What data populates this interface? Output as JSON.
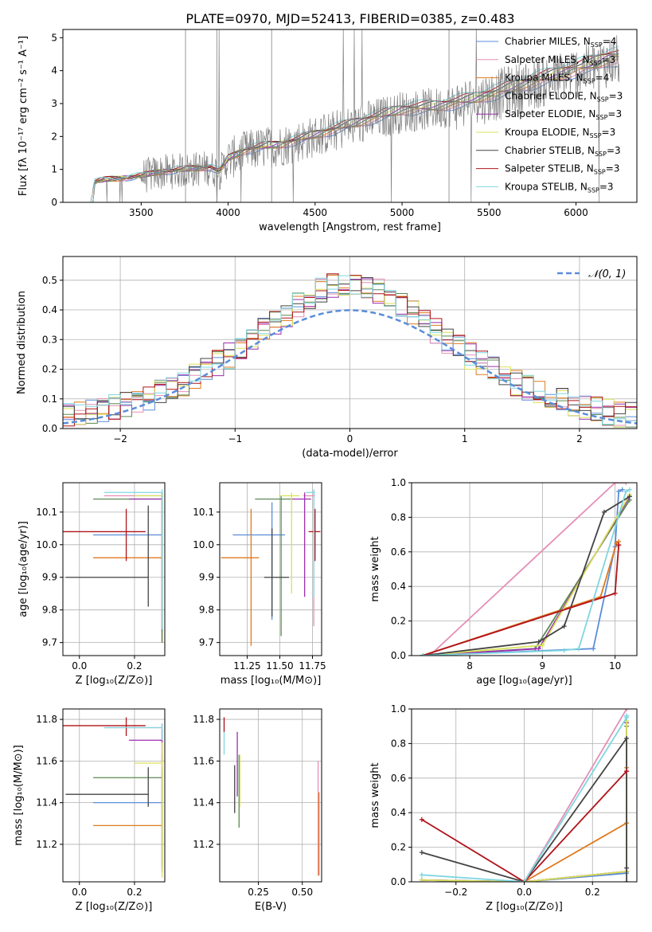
{
  "figure": {
    "title": "PLATE=0970, MJD=52413, FIBERID=0385, z=0.483"
  },
  "series_styles": [
    {
      "name": "Chabrier MILES",
      "nssp": "4",
      "color": "#5b8dd9"
    },
    {
      "name": "Salpeter MILES",
      "nssp": "3",
      "color": "#e58fb6"
    },
    {
      "name": "Kroupa MILES",
      "nssp": "4",
      "color": "#e07a1f"
    },
    {
      "name": "Chabrier ELODIE",
      "nssp": "3",
      "color": "#5b8a52"
    },
    {
      "name": "Salpeter ELODIE",
      "nssp": "3",
      "color": "#9b2fae"
    },
    {
      "name": "Kroupa ELODIE",
      "nssp": "3",
      "color": "#d9e15a"
    },
    {
      "name": "Chabrier STELIB",
      "nssp": "3",
      "color": "#444444"
    },
    {
      "name": "Salpeter STELIB",
      "nssp": "3",
      "color": "#b0141a"
    },
    {
      "name": "Kroupa STELIB",
      "nssp": "3",
      "color": "#7fd6e0"
    }
  ],
  "chart_data": [
    {
      "id": "spectrum",
      "type": "line",
      "title": "PLATE=0970, MJD=52413, FIBERID=0385, z=0.483",
      "xlabel": "wavelength [Angstrom, rest frame]",
      "ylabel": "Flux [fλ 10⁻¹⁷ erg cm⁻² s⁻¹ A⁻¹]",
      "xlim": [
        3050,
        6350
      ],
      "ylim": [
        0,
        5.25
      ],
      "xticks": [
        3500,
        4000,
        4500,
        5000,
        5500,
        6000
      ],
      "yticks": [
        0,
        1,
        2,
        3,
        4,
        5
      ],
      "data_color": "#808080",
      "data_trend": [
        [
          3210,
          0
        ],
        [
          3230,
          0.6
        ],
        [
          3300,
          0.68
        ],
        [
          3400,
          0.72
        ],
        [
          3500,
          0.78
        ],
        [
          3600,
          0.9
        ],
        [
          3700,
          0.95
        ],
        [
          3800,
          1.0
        ],
        [
          3900,
          1.05
        ],
        [
          3950,
          0.9
        ],
        [
          4000,
          1.3
        ],
        [
          4100,
          1.55
        ],
        [
          4200,
          1.65
        ],
        [
          4300,
          1.72
        ],
        [
          4400,
          1.85
        ],
        [
          4500,
          2.0
        ],
        [
          4600,
          2.15
        ],
        [
          4700,
          2.3
        ],
        [
          4800,
          2.45
        ],
        [
          4900,
          2.6
        ],
        [
          5000,
          2.75
        ],
        [
          5100,
          2.8
        ],
        [
          5200,
          2.85
        ],
        [
          5300,
          2.95
        ],
        [
          5400,
          3.05
        ],
        [
          5500,
          3.2
        ],
        [
          5600,
          3.35
        ],
        [
          5700,
          3.5
        ],
        [
          5800,
          3.65
        ],
        [
          5900,
          3.8
        ],
        [
          6000,
          3.95
        ],
        [
          6100,
          4.1
        ],
        [
          6200,
          4.3
        ]
      ],
      "legend_position": "top-right",
      "grid": false
    },
    {
      "id": "residuals",
      "type": "histogram",
      "xlabel": "(data-model)/error",
      "ylabel": "Normed distribution",
      "xlim": [
        -2.5,
        2.5
      ],
      "ylim": [
        0,
        0.58
      ],
      "xticks": [
        -2,
        -1,
        0,
        1,
        2
      ],
      "yticks": [
        0.0,
        0.1,
        0.2,
        0.3,
        0.4,
        0.5
      ],
      "bin_width": 0.1,
      "gaussian_label": "𝒩(0, 1)",
      "gaussian_color": "#5b8dd9",
      "legend_position": "top-right",
      "grid": true
    },
    {
      "id": "age-vs-Z",
      "type": "errorbar",
      "xlabel": "Z [log₁₀(Z/Z⊙)]",
      "ylabel": "age  [log₁₀(age/yr)]",
      "xlim": [
        -0.06,
        0.31
      ],
      "ylim": [
        9.66,
        10.19
      ],
      "xticks": [
        0.0,
        0.2
      ],
      "yticks": [
        9.7,
        9.8,
        9.9,
        10.0,
        10.1
      ],
      "points": [
        {
          "x": 0.3,
          "y": 10.03,
          "xerr": [
            0.25,
            0.0
          ],
          "yerr": [
            0.3,
            0.1
          ],
          "color": "#5b8dd9"
        },
        {
          "x": 0.3,
          "y": 10.15,
          "xerr": [
            0.21,
            0.0
          ],
          "yerr": [
            0.45,
            0.01
          ],
          "color": "#e58fb6"
        },
        {
          "x": 0.3,
          "y": 9.96,
          "xerr": [
            0.25,
            0.0
          ],
          "yerr": [
            0.26,
            0.2
          ],
          "color": "#e07a1f"
        },
        {
          "x": 0.3,
          "y": 10.14,
          "xerr": [
            0.25,
            0.0
          ],
          "yerr": [
            0.44,
            0.01
          ],
          "color": "#5b8a52"
        },
        {
          "x": 0.3,
          "y": 10.14,
          "xerr": [
            0.12,
            0.0
          ],
          "yerr": [
            0.4,
            0.02
          ],
          "color": "#9b2fae"
        },
        {
          "x": 0.3,
          "y": 10.15,
          "xerr": [
            0.1,
            0.0
          ],
          "yerr": [
            0.4,
            0.01
          ],
          "color": "#d9e15a"
        },
        {
          "x": 0.25,
          "y": 9.9,
          "xerr": [
            0.3,
            0.0
          ],
          "yerr": [
            0.09,
            0.22
          ],
          "color": "#444444"
        },
        {
          "x": 0.17,
          "y": 10.04,
          "xerr": [
            0.23,
            0.07
          ],
          "yerr": [
            0.09,
            0.07
          ],
          "color": "#b0141a"
        },
        {
          "x": 0.3,
          "y": 10.16,
          "xerr": [
            0.21,
            0.0
          ],
          "yerr": [
            0.42,
            0.01
          ],
          "color": "#7fd6e0"
        }
      ],
      "grid": true
    },
    {
      "id": "age-vs-mass",
      "type": "errorbar",
      "xlabel": "mass [log₁₀(M/M⊙)]",
      "ylabel": "",
      "xlim": [
        11.04,
        11.82
      ],
      "ylim": [
        9.66,
        10.19
      ],
      "xticks": [
        11.25,
        11.5,
        11.75
      ],
      "yticks": [
        9.7,
        9.8,
        9.9,
        10.0,
        10.1
      ],
      "points": [
        {
          "x": 11.44,
          "y": 10.03,
          "xerr": [
            0.3,
            0.1
          ],
          "yerr": [
            0.26,
            0.1
          ],
          "color": "#5b8dd9"
        },
        {
          "x": 11.76,
          "y": 10.15,
          "xerr": [
            0.08,
            0.01
          ],
          "yerr": [
            0.4,
            0.01
          ],
          "color": "#e58fb6"
        },
        {
          "x": 11.28,
          "y": 9.96,
          "xerr": [
            0.23,
            0.06
          ],
          "yerr": [
            0.27,
            0.15
          ],
          "color": "#e07a1f"
        },
        {
          "x": 11.51,
          "y": 10.14,
          "xerr": [
            0.2,
            0.08
          ],
          "yerr": [
            0.42,
            0.01
          ],
          "color": "#5b8a52"
        },
        {
          "x": 11.69,
          "y": 10.14,
          "xerr": [
            0.1,
            0.05
          ],
          "yerr": [
            0.3,
            0.02
          ],
          "color": "#9b2fae"
        },
        {
          "x": 11.59,
          "y": 10.15,
          "xerr": [
            0.09,
            0.06
          ],
          "yerr": [
            0.3,
            0.01
          ],
          "color": "#d9e15a"
        },
        {
          "x": 11.44,
          "y": 9.9,
          "xerr": [
            0.06,
            0.13
          ],
          "yerr": [
            0.12,
            0.15
          ],
          "color": "#444444"
        },
        {
          "x": 11.77,
          "y": 10.04,
          "xerr": [
            0.05,
            0.04
          ],
          "yerr": [
            0.09,
            0.07
          ],
          "color": "#b0141a"
        },
        {
          "x": 11.76,
          "y": 10.16,
          "xerr": [
            0.06,
            0.01
          ],
          "yerr": [
            0.32,
            0.01
          ],
          "color": "#7fd6e0"
        }
      ],
      "grid": true
    },
    {
      "id": "mass-weight-vs-age",
      "type": "line",
      "xlabel": "age  [log₁₀(age/yr)]",
      "ylabel": "mass weight",
      "xlim": [
        7.2,
        10.3
      ],
      "ylim": [
        0,
        1.0
      ],
      "xticks": [
        8,
        9,
        10
      ],
      "yticks": [
        0.0,
        0.2,
        0.4,
        0.6,
        0.8,
        1.0
      ],
      "series": [
        {
          "color": "#5b8dd9",
          "x": [
            7.35,
            9.7,
            10.0,
            10.05,
            10.1
          ],
          "y": [
            0.0,
            0.04,
            0.63,
            0.95,
            0.96
          ]
        },
        {
          "color": "#e58fb6",
          "x": [
            7.45,
            10.0,
            10.15
          ],
          "y": [
            0.0,
            1.0,
            1.0
          ]
        },
        {
          "color": "#e07a1f",
          "x": [
            7.35,
            9.8,
            10.02,
            10.05
          ],
          "y": [
            0.0,
            0.34,
            0.65,
            0.66
          ]
        },
        {
          "color": "#5b8a52",
          "x": [
            7.35,
            8.9,
            10.2
          ],
          "y": [
            0.0,
            0.04,
            0.9
          ]
        },
        {
          "color": "#9b2fae",
          "x": [
            7.35,
            8.95,
            10.2
          ],
          "y": [
            0.0,
            0.04,
            0.92
          ]
        },
        {
          "color": "#d9e15a",
          "x": [
            7.35,
            9.0,
            10.2
          ],
          "y": [
            0.0,
            0.06,
            0.93
          ]
        },
        {
          "color": "#444444",
          "x": [
            7.35,
            8.95,
            9.3,
            9.85,
            10.2
          ],
          "y": [
            0.0,
            0.08,
            0.17,
            0.83,
            0.92
          ]
        },
        {
          "color": "#b0141a",
          "x": [
            7.35,
            10.0,
            10.05,
            10.05
          ],
          "y": [
            0.0,
            0.36,
            0.64,
            0.64
          ]
        },
        {
          "color": "#7fd6e0",
          "x": [
            7.35,
            9.3,
            9.5,
            10.15,
            10.2
          ],
          "y": [
            0.0,
            0.03,
            0.04,
            0.95,
            0.96
          ]
        }
      ],
      "grid": true
    },
    {
      "id": "mass-vs-Z",
      "type": "errorbar",
      "xlabel": "Z [log₁₀(Z/Z⊙)]",
      "ylabel": "mass [log₁₀(M/M⊙)]",
      "xlim": [
        -0.06,
        0.31
      ],
      "ylim": [
        11.02,
        11.85
      ],
      "xticks": [
        0.0,
        0.2
      ],
      "yticks": [
        11.2,
        11.4,
        11.6,
        11.8
      ],
      "points": [
        {
          "x": 0.3,
          "y": 11.4,
          "xerr": [
            0.25,
            0.0
          ],
          "yerr": [
            0.3,
            0.15
          ],
          "color": "#5b8dd9"
        },
        {
          "x": 0.3,
          "y": 11.76,
          "xerr": [
            0.21,
            0.0
          ],
          "yerr": [
            0.7,
            0.02
          ],
          "color": "#e58fb6"
        },
        {
          "x": 0.3,
          "y": 11.29,
          "xerr": [
            0.25,
            0.0
          ],
          "yerr": [
            0.2,
            0.34
          ],
          "color": "#e07a1f"
        },
        {
          "x": 0.3,
          "y": 11.52,
          "xerr": [
            0.25,
            0.0
          ],
          "yerr": [
            0.45,
            0.05
          ],
          "color": "#5b8a52"
        },
        {
          "x": 0.3,
          "y": 11.7,
          "xerr": [
            0.12,
            0.0
          ],
          "yerr": [
            0.1,
            0.05
          ],
          "color": "#9b2fae"
        },
        {
          "x": 0.3,
          "y": 11.59,
          "xerr": [
            0.1,
            0.0
          ],
          "yerr": [
            0.55,
            0.1
          ],
          "color": "#d9e15a"
        },
        {
          "x": 0.25,
          "y": 11.44,
          "xerr": [
            0.3,
            0.0
          ],
          "yerr": [
            0.06,
            0.13
          ],
          "color": "#444444"
        },
        {
          "x": 0.17,
          "y": 11.77,
          "xerr": [
            0.23,
            0.07
          ],
          "yerr": [
            0.05,
            0.04
          ],
          "color": "#b0141a"
        },
        {
          "x": 0.3,
          "y": 11.76,
          "xerr": [
            0.21,
            0.0
          ],
          "yerr": [
            0.06,
            0.02
          ],
          "color": "#7fd6e0"
        }
      ],
      "grid": true
    },
    {
      "id": "mass-vs-EBV",
      "type": "errorbar",
      "xlabel": "E(B-V)",
      "ylabel": "",
      "xlim": [
        0.03,
        0.61
      ],
      "ylim": [
        11.02,
        11.85
      ],
      "xticks": [
        0.25,
        0.5
      ],
      "yticks": [
        11.2,
        11.4,
        11.6,
        11.8
      ],
      "points": [
        {
          "x": 0.59,
          "y": 11.4,
          "xerr": [
            0,
            0
          ],
          "yerr": [
            0.35,
            0.2
          ],
          "color": "#e58fb6"
        },
        {
          "x": 0.595,
          "y": 11.3,
          "xerr": [
            0,
            0
          ],
          "yerr": [
            0.25,
            0.15
          ],
          "color": "#e07a1f"
        },
        {
          "x": 0.055,
          "y": 11.72,
          "xerr": [
            0,
            0
          ],
          "yerr": [
            0.09,
            0.09
          ],
          "color": "#7fd6e0"
        },
        {
          "x": 0.055,
          "y": 11.77,
          "xerr": [
            0,
            0
          ],
          "yerr": [
            0.03,
            0.04
          ],
          "color": "#b0141a"
        },
        {
          "x": 0.13,
          "y": 11.58,
          "xerr": [
            0,
            0
          ],
          "yerr": [
            0.15,
            0.16
          ],
          "color": "#9b2fae"
        },
        {
          "x": 0.115,
          "y": 11.47,
          "xerr": [
            0,
            0
          ],
          "yerr": [
            0.12,
            0.11
          ],
          "color": "#444444"
        },
        {
          "x": 0.14,
          "y": 11.46,
          "xerr": [
            0,
            0
          ],
          "yerr": [
            0.18,
            0.17
          ],
          "color": "#5b8a52"
        },
        {
          "x": 0.145,
          "y": 11.48,
          "xerr": [
            0,
            0
          ],
          "yerr": [
            0.1,
            0.15
          ],
          "color": "#d9e15a"
        }
      ],
      "grid": true
    },
    {
      "id": "mass-weight-vs-Z",
      "type": "line",
      "xlabel": "Z [log₁₀(Z/Z⊙)]",
      "ylabel": "mass weight",
      "xlim": [
        -0.33,
        0.33
      ],
      "ylim": [
        0,
        1.0
      ],
      "xticks": [
        -0.2,
        0.0,
        0.2
      ],
      "yticks": [
        0.0,
        0.2,
        0.4,
        0.6,
        0.8,
        1.0
      ],
      "series": [
        {
          "color": "#5b8dd9",
          "x": [
            -0.3,
            0.0,
            0.3,
            0.3
          ],
          "y": [
            0.01,
            0.0,
            0.05,
            0.96
          ]
        },
        {
          "color": "#e58fb6",
          "x": [
            0.0,
            0.3
          ],
          "y": [
            0.0,
            1.0
          ]
        },
        {
          "color": "#e07a1f",
          "x": [
            0.0,
            0.3,
            0.3
          ],
          "y": [
            0.0,
            0.34,
            0.66
          ]
        },
        {
          "color": "#5b8a52",
          "x": [
            -0.3,
            0.0,
            0.3,
            0.3
          ],
          "y": [
            0.01,
            0.0,
            0.06,
            0.9
          ]
        },
        {
          "color": "#9b2fae",
          "x": [
            -0.3,
            0.0,
            0.3,
            0.3
          ],
          "y": [
            0.01,
            0.0,
            0.06,
            0.92
          ]
        },
        {
          "color": "#d9e15a",
          "x": [
            -0.3,
            0.0,
            0.3,
            0.3
          ],
          "y": [
            0.01,
            0.0,
            0.06,
            0.93
          ]
        },
        {
          "color": "#444444",
          "x": [
            -0.3,
            0.0,
            0.3,
            0.3,
            0.3
          ],
          "y": [
            0.17,
            0.0,
            0.83,
            0.08,
            0.0
          ]
        },
        {
          "color": "#b0141a",
          "x": [
            -0.3,
            0.0,
            0.3,
            0.3
          ],
          "y": [
            0.36,
            0.0,
            0.64,
            0.64
          ]
        },
        {
          "color": "#7fd6e0",
          "x": [
            -0.3,
            0.0,
            0.3,
            0.3
          ],
          "y": [
            0.04,
            0.0,
            0.95,
            0.96
          ]
        }
      ],
      "grid": true
    }
  ]
}
